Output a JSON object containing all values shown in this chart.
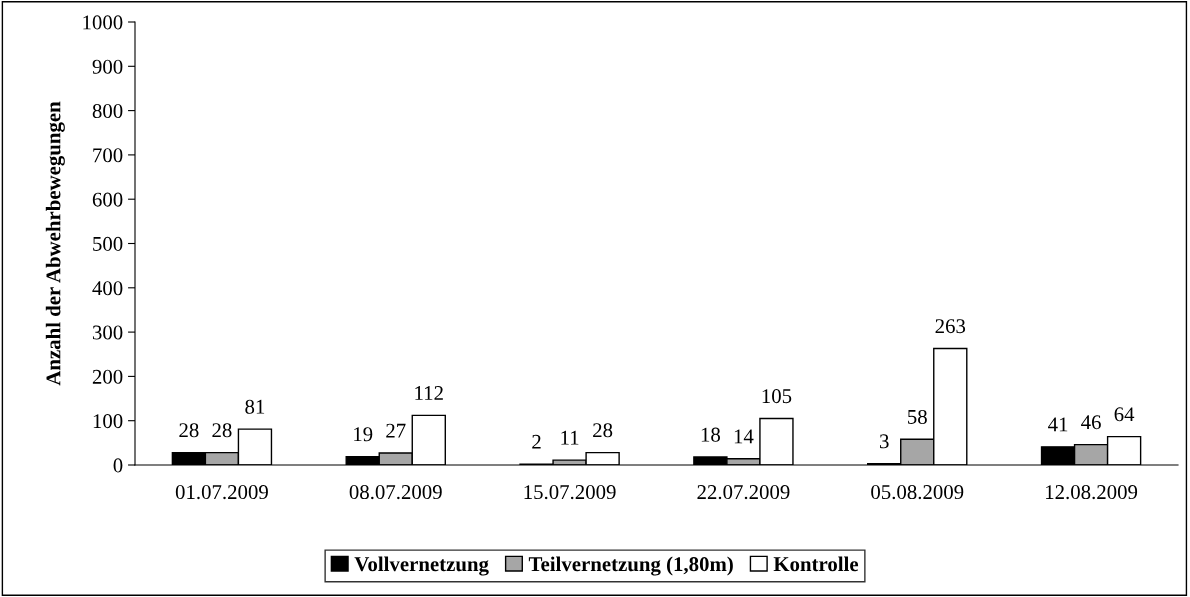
{
  "chart_data": {
    "type": "bar",
    "ylabel": "Anzahl der Abwehrbewegungen",
    "categories": [
      "01.07.2009",
      "08.07.2009",
      "15.07.2009",
      "22.07.2009",
      "05.08.2009",
      "12.08.2009"
    ],
    "series": [
      {
        "name": "Vollvernetzung",
        "color": "#000000",
        "values": [
          28,
          19,
          2,
          18,
          3,
          41
        ]
      },
      {
        "name": "Teilvernetzung (1,80m)",
        "color": "#a6a6a6",
        "values": [
          28,
          27,
          11,
          14,
          58,
          46
        ]
      },
      {
        "name": "Kontrolle",
        "color": "#ffffff",
        "values": [
          81,
          112,
          28,
          105,
          263,
          64
        ]
      }
    ],
    "ylim": [
      0,
      1000
    ],
    "yticks": [
      0,
      100,
      200,
      300,
      400,
      500,
      600,
      700,
      800,
      900,
      1000
    ],
    "data_labels": true,
    "grid": false,
    "legend": "bottom"
  }
}
